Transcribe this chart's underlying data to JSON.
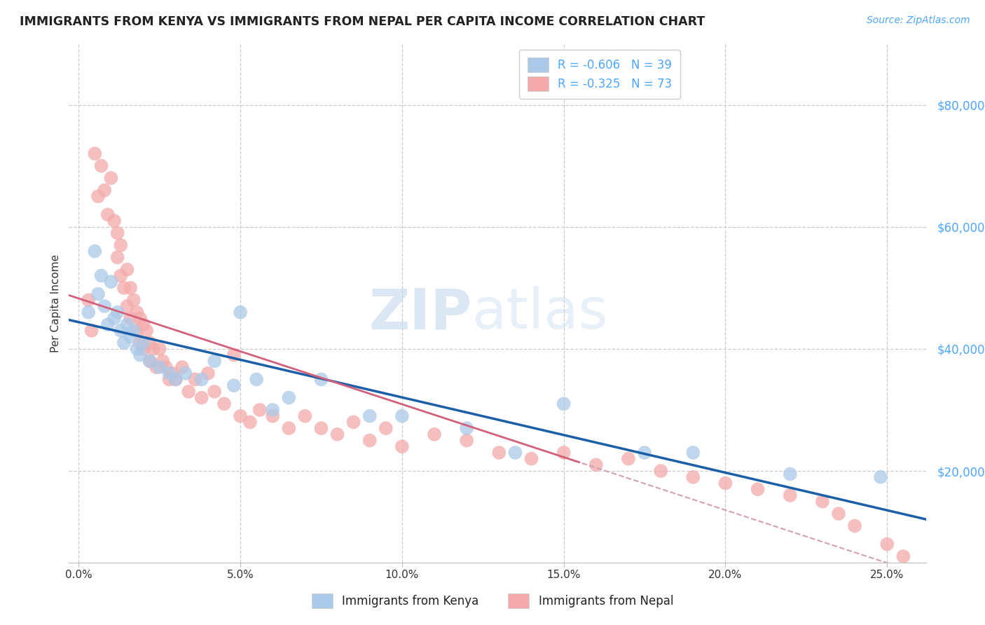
{
  "title": "IMMIGRANTS FROM KENYA VS IMMIGRANTS FROM NEPAL PER CAPITA INCOME CORRELATION CHART",
  "source": "Source: ZipAtlas.com",
  "ylabel": "Per Capita Income",
  "xlabel_ticks": [
    "0.0%",
    "5.0%",
    "10.0%",
    "15.0%",
    "20.0%",
    "25.0%"
  ],
  "xlabel_vals": [
    0.0,
    0.05,
    0.1,
    0.15,
    0.2,
    0.25
  ],
  "ytick_labels": [
    "$20,000",
    "$40,000",
    "$60,000",
    "$80,000"
  ],
  "ytick_vals": [
    20000,
    40000,
    60000,
    80000
  ],
  "ylim": [
    5000,
    90000
  ],
  "xlim": [
    -0.003,
    0.262
  ],
  "kenya_color": "#aac9e8",
  "nepal_color": "#f4aaaa",
  "kenya_line_color": "#1a5fa8",
  "nepal_line_color": "#d45f7a",
  "nepal_dash_color": "#d4a0b0",
  "kenya_R": -0.606,
  "kenya_N": 39,
  "nepal_R": -0.325,
  "nepal_N": 73,
  "legend_label_kenya": "Immigrants from Kenya",
  "legend_label_nepal": "Immigrants from Nepal",
  "watermark_zip": "ZIP",
  "watermark_atlas": "atlas",
  "background_color": "#ffffff",
  "grid_color": "#cccccc",
  "kenya_scatter_x": [
    0.003,
    0.005,
    0.006,
    0.007,
    0.008,
    0.009,
    0.01,
    0.011,
    0.012,
    0.013,
    0.014,
    0.015,
    0.016,
    0.017,
    0.018,
    0.019,
    0.02,
    0.022,
    0.025,
    0.028,
    0.03,
    0.033,
    0.038,
    0.042,
    0.048,
    0.05,
    0.055,
    0.06,
    0.065,
    0.075,
    0.09,
    0.1,
    0.12,
    0.135,
    0.15,
    0.175,
    0.19,
    0.22,
    0.248
  ],
  "kenya_scatter_y": [
    46000,
    56000,
    49000,
    52000,
    47000,
    44000,
    51000,
    45000,
    46000,
    43000,
    41000,
    44000,
    42000,
    43000,
    40000,
    39000,
    41000,
    38000,
    37000,
    36000,
    35000,
    36000,
    35000,
    38000,
    34000,
    46000,
    35000,
    30000,
    32000,
    35000,
    29000,
    29000,
    27000,
    23000,
    31000,
    23000,
    23000,
    19500,
    19000
  ],
  "nepal_scatter_x": [
    0.003,
    0.004,
    0.005,
    0.006,
    0.007,
    0.008,
    0.009,
    0.01,
    0.011,
    0.012,
    0.012,
    0.013,
    0.013,
    0.014,
    0.015,
    0.015,
    0.016,
    0.016,
    0.017,
    0.018,
    0.018,
    0.019,
    0.019,
    0.02,
    0.02,
    0.021,
    0.022,
    0.022,
    0.023,
    0.024,
    0.025,
    0.026,
    0.027,
    0.028,
    0.029,
    0.03,
    0.032,
    0.034,
    0.036,
    0.038,
    0.04,
    0.042,
    0.045,
    0.048,
    0.05,
    0.053,
    0.056,
    0.06,
    0.065,
    0.07,
    0.075,
    0.08,
    0.085,
    0.09,
    0.095,
    0.1,
    0.11,
    0.12,
    0.13,
    0.14,
    0.15,
    0.16,
    0.17,
    0.18,
    0.19,
    0.2,
    0.21,
    0.22,
    0.23,
    0.235,
    0.24,
    0.25,
    0.255
  ],
  "nepal_scatter_y": [
    48000,
    43000,
    72000,
    65000,
    70000,
    66000,
    62000,
    68000,
    61000,
    59000,
    55000,
    57000,
    52000,
    50000,
    53000,
    47000,
    50000,
    45000,
    48000,
    46000,
    43000,
    45000,
    41000,
    44000,
    40000,
    43000,
    41000,
    38000,
    40000,
    37000,
    40000,
    38000,
    37000,
    35000,
    36000,
    35000,
    37000,
    33000,
    35000,
    32000,
    36000,
    33000,
    31000,
    39000,
    29000,
    28000,
    30000,
    29000,
    27000,
    29000,
    27000,
    26000,
    28000,
    25000,
    27000,
    24000,
    26000,
    25000,
    23000,
    22000,
    23000,
    21000,
    22000,
    20000,
    19000,
    18000,
    17000,
    16000,
    15000,
    13000,
    11000,
    8000,
    6000
  ]
}
